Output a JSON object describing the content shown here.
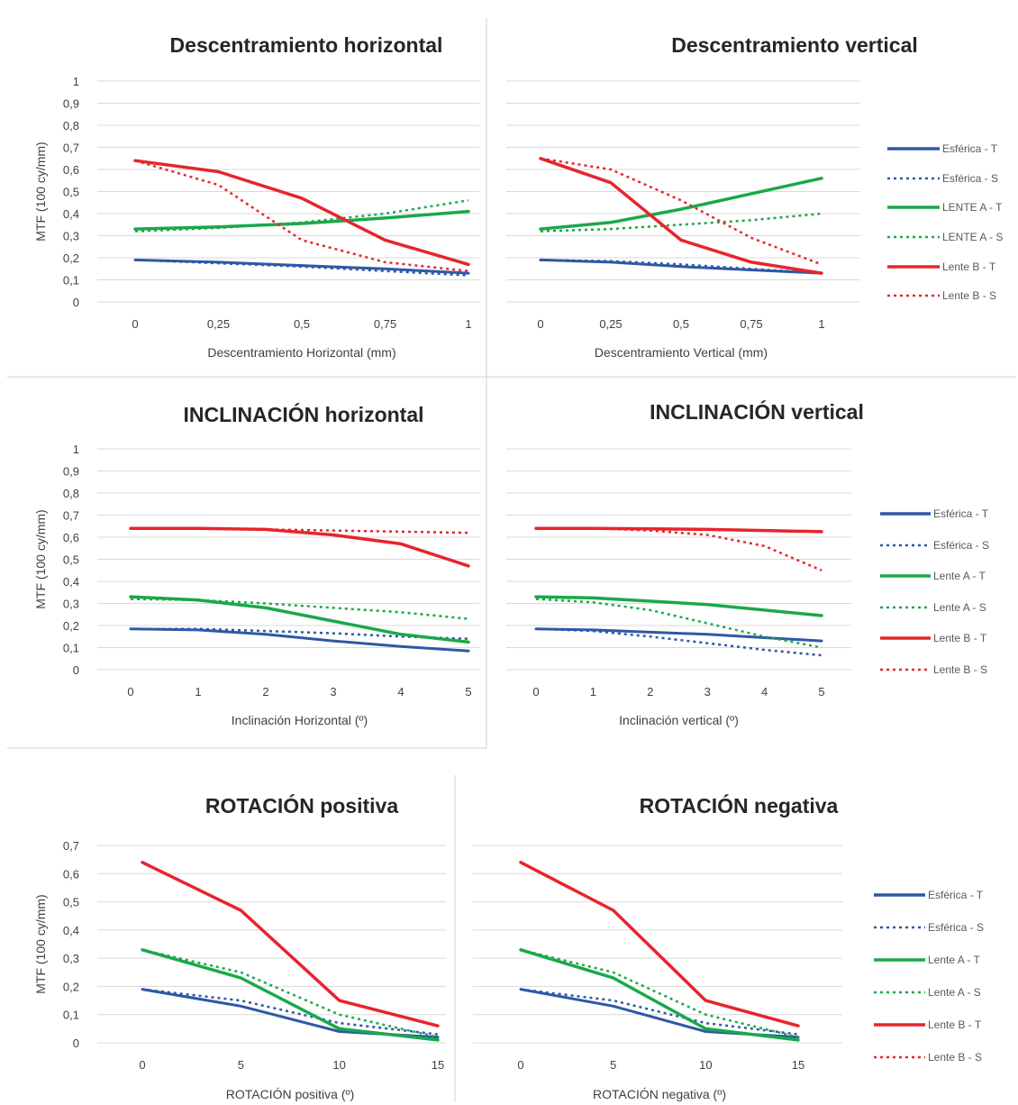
{
  "colors": {
    "esferica": "#2E58A6",
    "lente_a": "#1BA84A",
    "lente_b": "#E8242B",
    "grid": "#D9D9D9"
  },
  "chart_data": [
    {
      "type": "line",
      "title": "Descentramiento horizontal",
      "xlabel": "Descentramiento Horizontal (mm)",
      "ylabel": "MTF (100 cy/mm)",
      "x": [
        0,
        0.25,
        0.5,
        0.75,
        1
      ],
      "x_tick_labels": [
        "0",
        "0,25",
        "0,5",
        "0,75",
        "1"
      ],
      "ylim": [
        0,
        1
      ],
      "y_tick_labels": [
        "0",
        "0,1",
        "0,2",
        "0,3",
        "0,4",
        "0,5",
        "0,6",
        "0,7",
        "0,8",
        "0,9",
        "1"
      ],
      "grid": true,
      "series": [
        {
          "name": "Esférica - T",
          "values": [
            0.19,
            0.18,
            0.165,
            0.15,
            0.13
          ]
        },
        {
          "name": "Esférica - S",
          "values": [
            0.19,
            0.175,
            0.16,
            0.14,
            0.12
          ]
        },
        {
          "name": "LENTE A - T",
          "values": [
            0.33,
            0.34,
            0.355,
            0.38,
            0.41
          ]
        },
        {
          "name": "LENTE A - S",
          "values": [
            0.32,
            0.335,
            0.36,
            0.4,
            0.46
          ]
        },
        {
          "name": "Lente B - T",
          "values": [
            0.64,
            0.59,
            0.47,
            0.28,
            0.17
          ]
        },
        {
          "name": "Lente B - S",
          "values": [
            0.64,
            0.53,
            0.28,
            0.18,
            0.14
          ]
        }
      ],
      "legend": null
    },
    {
      "type": "line",
      "title": "Descentramiento vertical",
      "xlabel": "Descentramiento Vertical (mm)",
      "ylabel": "",
      "x": [
        0,
        0.25,
        0.5,
        0.75,
        1
      ],
      "x_tick_labels": [
        "0",
        "0,25",
        "0,5",
        "0,75",
        "1"
      ],
      "ylim": [
        0,
        1
      ],
      "grid": true,
      "series": [
        {
          "name": "Esférica - T",
          "values": [
            0.19,
            0.18,
            0.16,
            0.145,
            0.13
          ]
        },
        {
          "name": "Esférica - S",
          "values": [
            0.19,
            0.185,
            0.17,
            0.15,
            0.13
          ]
        },
        {
          "name": "LENTE A - T",
          "values": [
            0.33,
            0.36,
            0.42,
            0.49,
            0.56
          ]
        },
        {
          "name": "LENTE A - S",
          "values": [
            0.32,
            0.33,
            0.35,
            0.37,
            0.4
          ]
        },
        {
          "name": "Lente B - T",
          "values": [
            0.65,
            0.54,
            0.28,
            0.18,
            0.13
          ]
        },
        {
          "name": "Lente B - S",
          "values": [
            0.65,
            0.6,
            0.46,
            0.29,
            0.17
          ]
        }
      ],
      "legend": [
        "Esférica - T",
        "Esférica - S",
        "LENTE A - T",
        "LENTE A - S",
        "Lente B - T",
        "Lente B - S"
      ],
      "legend_placement": "right"
    },
    {
      "type": "line",
      "title": "INCLINACIÓN horizontal",
      "xlabel": "Inclinación Horizontal (º)",
      "ylabel": "MTF (100 cy/mm)",
      "x": [
        0,
        1,
        2,
        3,
        4,
        5
      ],
      "x_tick_labels": [
        "0",
        "1",
        "2",
        "3",
        "4",
        "5"
      ],
      "ylim": [
        0,
        1
      ],
      "y_tick_labels": [
        "0",
        "0,1",
        "0,2",
        "0,3",
        "0,4",
        "0,5",
        "0,6",
        "0,7",
        "0,8",
        "0,9",
        "1"
      ],
      "grid": true,
      "series": [
        {
          "name": "Esférica - T",
          "values": [
            0.185,
            0.18,
            0.16,
            0.13,
            0.105,
            0.085
          ]
        },
        {
          "name": "Esférica - S",
          "values": [
            0.185,
            0.185,
            0.175,
            0.165,
            0.15,
            0.14
          ]
        },
        {
          "name": "Lente A - T",
          "values": [
            0.33,
            0.315,
            0.28,
            0.22,
            0.16,
            0.125
          ]
        },
        {
          "name": "Lente A - S",
          "values": [
            0.32,
            0.315,
            0.3,
            0.28,
            0.26,
            0.23
          ]
        },
        {
          "name": "Lente B - T",
          "values": [
            0.64,
            0.64,
            0.635,
            0.61,
            0.57,
            0.47
          ]
        },
        {
          "name": "Lente B - S",
          "values": [
            0.64,
            0.64,
            0.635,
            0.63,
            0.625,
            0.62
          ]
        }
      ],
      "legend": null
    },
    {
      "type": "line",
      "title": "INCLINACIÓN vertical",
      "xlabel": "Inclinación vertical (º)",
      "ylabel": "",
      "x": [
        0,
        1,
        2,
        3,
        4,
        5
      ],
      "x_tick_labels": [
        "0",
        "1",
        "2",
        "3",
        "4",
        "5"
      ],
      "ylim": [
        0,
        1
      ],
      "grid": true,
      "series": [
        {
          "name": "Esférica - T",
          "values": [
            0.185,
            0.18,
            0.17,
            0.16,
            0.145,
            0.13
          ]
        },
        {
          "name": "Esférica - S",
          "values": [
            0.185,
            0.175,
            0.15,
            0.12,
            0.09,
            0.065
          ]
        },
        {
          "name": "Lente A - T",
          "values": [
            0.33,
            0.325,
            0.31,
            0.295,
            0.27,
            0.245
          ]
        },
        {
          "name": "Lente A - S",
          "values": [
            0.32,
            0.305,
            0.27,
            0.21,
            0.15,
            0.1
          ]
        },
        {
          "name": "Lente B - T",
          "values": [
            0.64,
            0.64,
            0.638,
            0.635,
            0.63,
            0.625
          ]
        },
        {
          "name": "Lente B - S",
          "values": [
            0.64,
            0.64,
            0.63,
            0.61,
            0.56,
            0.45
          ]
        }
      ],
      "legend": [
        "Esférica - T",
        "Esférica - S",
        "Lente A - T",
        "Lente A - S",
        "Lente B - T",
        "Lente B - S"
      ],
      "legend_placement": "right"
    },
    {
      "type": "line",
      "title": "ROTACIÓN positiva",
      "xlabel": "ROTACIÓN positiva (º)",
      "ylabel": "MTF (100 cy/mm)",
      "x": [
        0,
        5,
        10,
        15
      ],
      "x_tick_labels": [
        "0",
        "5",
        "10",
        "15"
      ],
      "ylim": [
        0,
        0.7
      ],
      "y_tick_labels": [
        "0",
        "0,1",
        "0,2",
        "0,3",
        "0,4",
        "0,5",
        "0,6",
        "0,7"
      ],
      "grid": true,
      "series": [
        {
          "name": "Esférica - T",
          "values": [
            0.19,
            0.13,
            0.04,
            0.02
          ]
        },
        {
          "name": "Esférica - S",
          "values": [
            0.19,
            0.15,
            0.07,
            0.03
          ]
        },
        {
          "name": "Lente A - T",
          "values": [
            0.33,
            0.23,
            0.05,
            0.01
          ]
        },
        {
          "name": "Lente A - S",
          "values": [
            0.33,
            0.25,
            0.1,
            0.02
          ]
        },
        {
          "name": "Lente B - T",
          "values": [
            0.64,
            0.47,
            0.15,
            0.06
          ]
        },
        {
          "name": "Lente B - S",
          "values": [
            0.64,
            0.47,
            0.15,
            0.06
          ]
        }
      ],
      "legend": null
    },
    {
      "type": "line",
      "title": "ROTACIÓN negativa",
      "xlabel": "ROTACIÓN negativa (º)",
      "ylabel": "",
      "x": [
        0,
        5,
        10,
        15
      ],
      "x_tick_labels": [
        "0",
        "5",
        "10",
        "15"
      ],
      "ylim": [
        0,
        0.7
      ],
      "grid": true,
      "series": [
        {
          "name": "Esférica - T",
          "values": [
            0.19,
            0.13,
            0.04,
            0.02
          ]
        },
        {
          "name": "Esférica - S",
          "values": [
            0.19,
            0.15,
            0.07,
            0.03
          ]
        },
        {
          "name": "Lente A - T",
          "values": [
            0.33,
            0.23,
            0.05,
            0.01
          ]
        },
        {
          "name": "Lente A - S",
          "values": [
            0.33,
            0.25,
            0.1,
            0.02
          ]
        },
        {
          "name": "Lente B - T",
          "values": [
            0.64,
            0.47,
            0.15,
            0.06
          ]
        },
        {
          "name": "Lente B - S",
          "values": [
            0.64,
            0.47,
            0.15,
            0.06
          ]
        }
      ],
      "legend": [
        "Esférica - T",
        "Esférica - S",
        "Lente A - T",
        "Lente A - S",
        "Lente B - T",
        "Lente B - S"
      ],
      "legend_placement": "right"
    }
  ]
}
